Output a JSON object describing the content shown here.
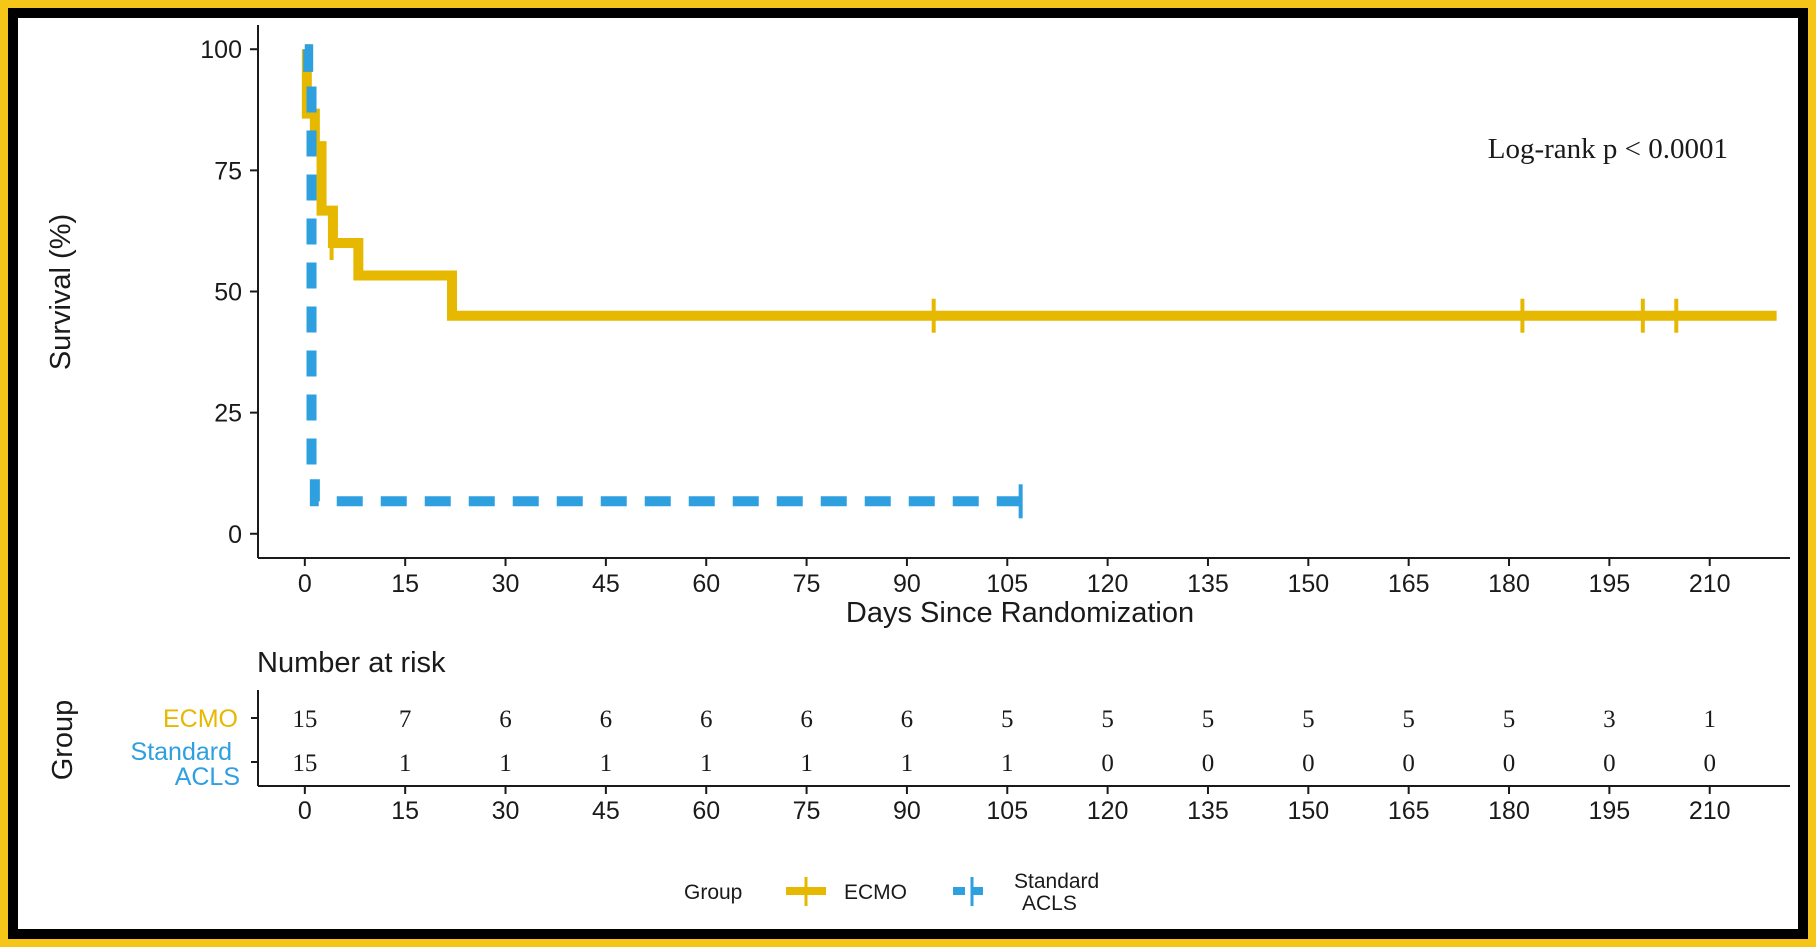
{
  "chart_data": {
    "type": "line",
    "subtype": "kaplan-meier",
    "xlabel": "Days Since Randomization",
    "ylabel": "Survival (%)",
    "xlim": [
      -7,
      222
    ],
    "ylim": [
      -5,
      105
    ],
    "x_ticks": [
      0,
      15,
      30,
      45,
      60,
      75,
      90,
      105,
      120,
      135,
      150,
      165,
      180,
      195,
      210
    ],
    "y_ticks": [
      0,
      25,
      50,
      75,
      100
    ],
    "annotation": "Log-rank p < 0.0001",
    "colors": {
      "ECMO": "#e7b800",
      "Standard ACLS": "#2e9fdf"
    },
    "series": [
      {
        "name": "ECMO",
        "line": "solid",
        "x": [
          0,
          0.3,
          1.5,
          2.5,
          3.3,
          4.2,
          8,
          22,
          220
        ],
        "y": [
          100,
          86.7,
          80,
          66.7,
          66.7,
          60,
          53.3,
          45,
          45
        ],
        "censor_x": [
          4,
          94,
          182,
          200,
          205
        ],
        "censor_y": [
          60,
          45,
          45,
          45,
          45
        ]
      },
      {
        "name": "Standard ACLS",
        "line": "dashed",
        "x": [
          0,
          0.5,
          1,
          1.5,
          107
        ],
        "y": [
          100,
          93.3,
          13.3,
          6.7,
          6.7
        ],
        "censor_x": [
          107
        ],
        "censor_y": [
          6.7
        ]
      }
    ]
  },
  "risk_table": {
    "title": "Number at risk",
    "ylabel": "Group",
    "times": [
      "0",
      "15",
      "30",
      "45",
      "60",
      "75",
      "90",
      "105",
      "120",
      "135",
      "150",
      "165",
      "180",
      "195",
      "210"
    ],
    "rows": [
      {
        "label": "ECMO",
        "color": "#e7b800",
        "counts": [
          "15",
          "7",
          "6",
          "6",
          "6",
          "6",
          "6",
          "5",
          "5",
          "5",
          "5",
          "5",
          "5",
          "3",
          "1"
        ]
      },
      {
        "label_line1": "Standard",
        "label_line2": "ACLS",
        "color": "#2e9fdf",
        "counts": [
          "15",
          "1",
          "1",
          "1",
          "1",
          "1",
          "1",
          "1",
          "0",
          "0",
          "0",
          "0",
          "0",
          "0",
          "0"
        ]
      }
    ]
  },
  "legend": {
    "title": "Group",
    "ecmo": "ECMO",
    "acls_line1": "Standard",
    "acls_line2": "ACLS"
  }
}
